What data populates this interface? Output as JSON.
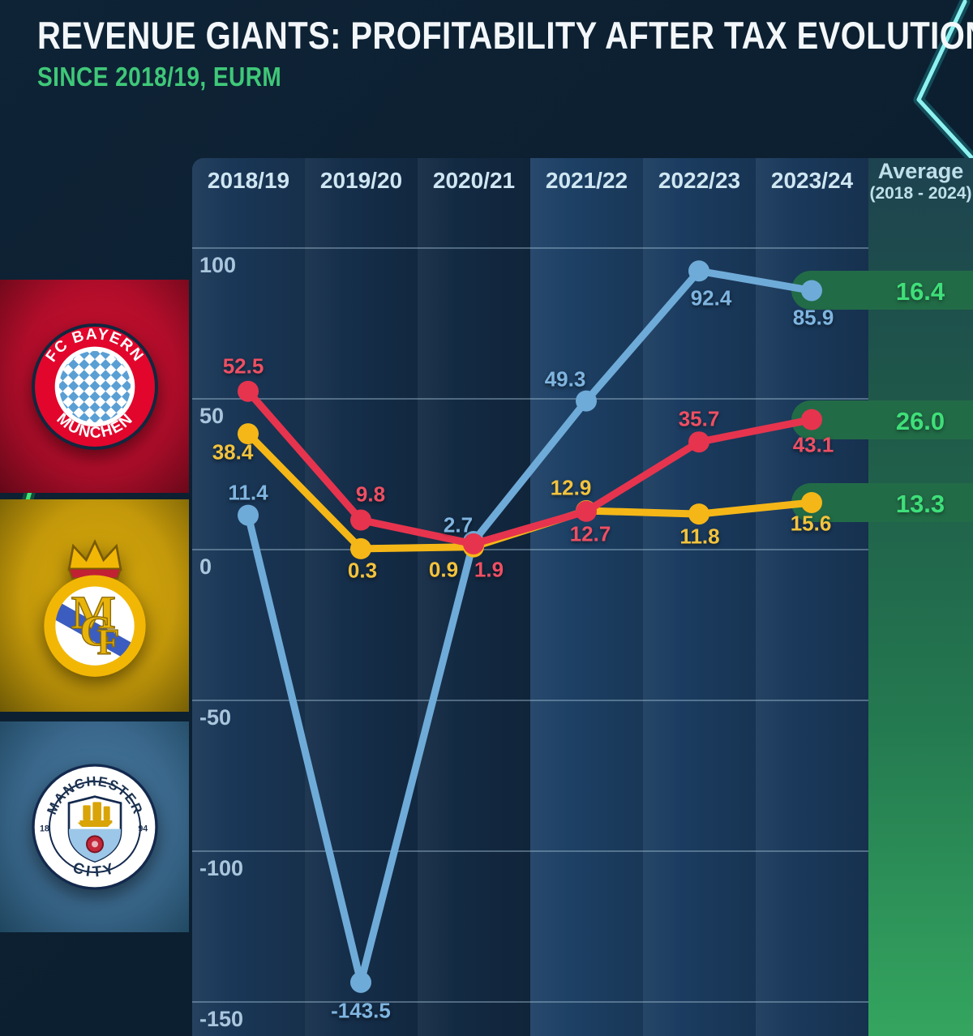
{
  "title": "REVENUE GIANTS: PROFITABILITY AFTER TAX EVOLUTION",
  "subtitle": "SINCE 2018/19, EURM",
  "average_header": {
    "line1": "Average",
    "line2": "(2018 - 2024)"
  },
  "clubs": [
    {
      "name": "FC Bayern München",
      "band_color": "#b00d2a"
    },
    {
      "name": "Real Madrid",
      "band_color": "#c3980a"
    },
    {
      "name": "Manchester City",
      "band_color": "#3a678b"
    }
  ],
  "colors": {
    "accent_green": "#3fdf79",
    "subtitle_green": "#3fc878",
    "background": "#0c1f30",
    "gridline": "#a5c3d7"
  },
  "chart_data": {
    "type": "line",
    "unit": "EURm",
    "categories": [
      "2018/19",
      "2019/20",
      "2020/21",
      "2021/22",
      "2022/23",
      "2023/24"
    ],
    "series": [
      {
        "name": "Manchester City",
        "color": "#6fabd8",
        "label_color": "#7fb5e0",
        "values": [
          11.4,
          -143.5,
          2.7,
          49.3,
          92.4,
          85.9
        ],
        "average": 16.4
      },
      {
        "name": "Real Madrid",
        "color": "#f5b717",
        "label_color": "#f3c33d",
        "values": [
          38.4,
          0.3,
          0.9,
          12.9,
          11.8,
          15.6
        ],
        "average": 13.3
      },
      {
        "name": "FC Bayern München",
        "color": "#e6344e",
        "label_color": "#ef4f63",
        "values": [
          52.5,
          9.8,
          1.9,
          12.7,
          35.7,
          43.1
        ],
        "average": 26.0
      }
    ],
    "yticks": [
      100,
      50,
      0,
      -50,
      -100,
      -150
    ],
    "ytick_labels": [
      "100",
      "50",
      "0",
      "-50",
      "-100",
      "-150"
    ],
    "ylim": [
      -150,
      100
    ],
    "grid": true,
    "legend_position": "left-sidebar-logos",
    "average_column": true
  }
}
